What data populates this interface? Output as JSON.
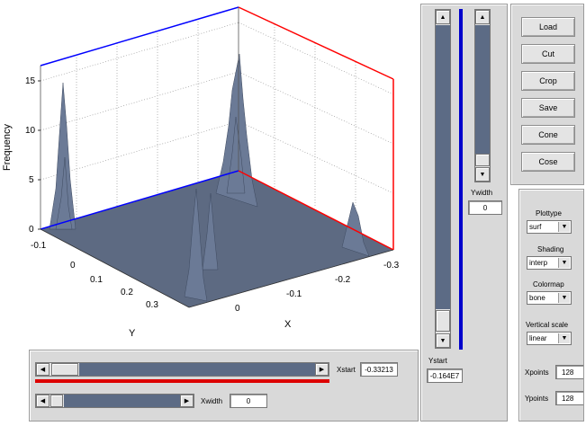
{
  "plot": {
    "ylabel": "Frequency",
    "xlabel": "X",
    "ytick_label": "Y",
    "z_ticks": [
      "15",
      "10",
      "5",
      "0"
    ],
    "y_ticks": [
      "-0.1",
      "0",
      "0.1",
      "0.2",
      "0.3"
    ],
    "x_ticks": [
      "0",
      "-0.1",
      "-0.2",
      "-0.3"
    ]
  },
  "bottom_panel": {
    "xstart_label": "Xstart",
    "xstart_value": "-0.33213",
    "xwidth_label": "Xwidth",
    "xwidth_value": "0",
    "xstart_position": 0.05,
    "xwidth_position": 0.0
  },
  "vertical_panel": {
    "ystart_label": "Ystart",
    "ystart_value": "-0.164E7",
    "ywidth_label": "Ywidth",
    "ywidth_value": "0",
    "scroll_up": "▲",
    "scroll_down": "▼",
    "marker_color": "#0000cc"
  },
  "buttons": {
    "load": "Load",
    "cut": "Cut",
    "crop": "Crop",
    "save": "Save",
    "clone": "Cone",
    "close": "Cose"
  },
  "options": {
    "plottype_label": "Plottype",
    "plottype_value": "surf",
    "shading_label": "Shading",
    "shading_value": "interp",
    "colormap_label": "Colormap",
    "colormap_value": "bone",
    "vscale_label": "Vertical scale",
    "vscale_value": "linear",
    "xpoints_label": "Xpoints",
    "xpoints_value": "128",
    "ypoints_label": "Ypoints",
    "ypoints_value": "128"
  },
  "colors": {
    "track": "#5c6b85",
    "red_bar": "#dd0000",
    "surface": "#5d6a82",
    "box_blue": "#0000ff",
    "box_red": "#ff0000"
  }
}
